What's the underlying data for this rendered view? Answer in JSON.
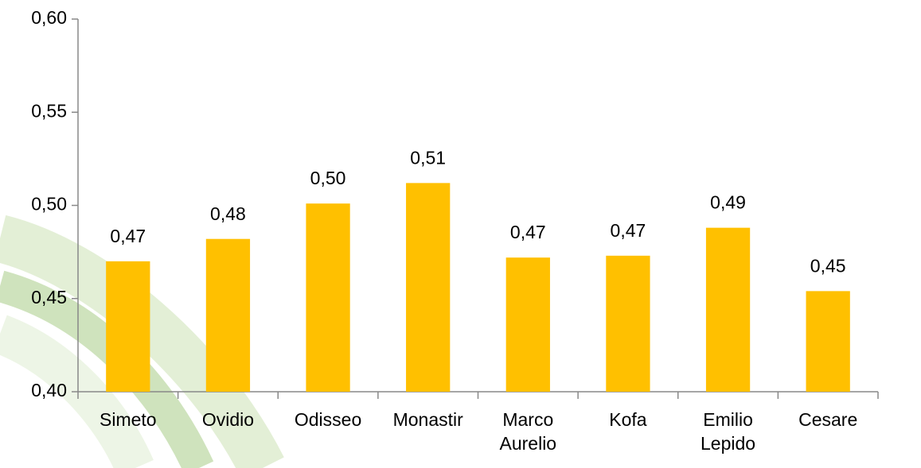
{
  "chart_data": {
    "type": "bar",
    "categories": [
      "Simeto",
      "Ovidio",
      "Odisseo",
      "Monastir",
      "Marco Aurelio",
      "Kofa",
      "Emilio Lepido",
      "Cesare"
    ],
    "values": [
      0.47,
      0.482,
      0.501,
      0.512,
      0.472,
      0.473,
      0.488,
      0.454
    ],
    "value_labels": [
      "0,47",
      "0,48",
      "0,50",
      "0,51",
      "0,47",
      "0,47",
      "0,49",
      "0,45"
    ],
    "color": "#ffc000",
    "ylim": [
      0.4,
      0.6
    ],
    "yticks": [
      {
        "value": 0.4,
        "label": "0,40"
      },
      {
        "value": 0.45,
        "label": "0,45"
      },
      {
        "value": 0.5,
        "label": "0,50"
      },
      {
        "value": 0.55,
        "label": "0,55"
      },
      {
        "value": 0.6,
        "label": "0,60"
      }
    ],
    "grid": false
  }
}
